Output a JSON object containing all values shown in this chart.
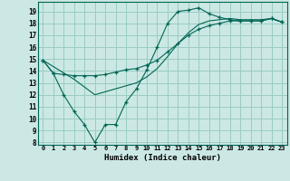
{
  "xlabel": "Humidex (Indice chaleur)",
  "ylabel": "",
  "bg_color": "#cce8e4",
  "grid_color": "#99ccc4",
  "line_color": "#006655",
  "xlim": [
    -0.5,
    23.5
  ],
  "ylim": [
    7.8,
    19.8
  ],
  "xticks": [
    0,
    1,
    2,
    3,
    4,
    5,
    6,
    7,
    8,
    9,
    10,
    11,
    12,
    13,
    14,
    15,
    16,
    17,
    18,
    19,
    20,
    21,
    22,
    23
  ],
  "yticks": [
    8,
    9,
    10,
    11,
    12,
    13,
    14,
    15,
    16,
    17,
    18,
    19
  ],
  "line1_x": [
    0,
    1,
    2,
    3,
    4,
    5,
    6,
    7,
    8,
    9,
    10,
    11,
    12,
    13,
    14,
    15,
    16,
    17,
    18,
    19,
    20,
    21,
    22,
    23
  ],
  "line1_y": [
    14.9,
    13.8,
    12.0,
    10.6,
    9.5,
    8.0,
    9.5,
    9.5,
    11.4,
    12.5,
    14.1,
    16.0,
    18.0,
    19.0,
    19.1,
    19.3,
    18.8,
    18.5,
    18.3,
    18.2,
    18.2,
    18.2,
    18.4,
    18.1
  ],
  "line2_x": [
    0,
    1,
    2,
    3,
    4,
    5,
    6,
    7,
    8,
    9,
    10,
    11,
    12,
    13,
    14,
    15,
    16,
    17,
    18,
    19,
    20,
    21,
    22,
    23
  ],
  "line2_y": [
    14.9,
    13.8,
    13.7,
    13.6,
    13.6,
    13.6,
    13.7,
    13.9,
    14.1,
    14.2,
    14.5,
    14.9,
    15.6,
    16.3,
    17.0,
    17.5,
    17.8,
    18.0,
    18.2,
    18.2,
    18.2,
    18.2,
    18.4,
    18.1
  ],
  "line3_x": [
    0,
    3,
    5,
    7,
    9,
    10,
    11,
    12,
    13,
    14,
    15,
    16,
    17,
    18,
    19,
    20,
    21,
    22,
    23
  ],
  "line3_y": [
    14.9,
    13.3,
    12.0,
    12.5,
    13.0,
    13.5,
    14.2,
    15.2,
    16.3,
    17.2,
    17.9,
    18.2,
    18.3,
    18.4,
    18.3,
    18.3,
    18.3,
    18.4,
    18.1
  ]
}
